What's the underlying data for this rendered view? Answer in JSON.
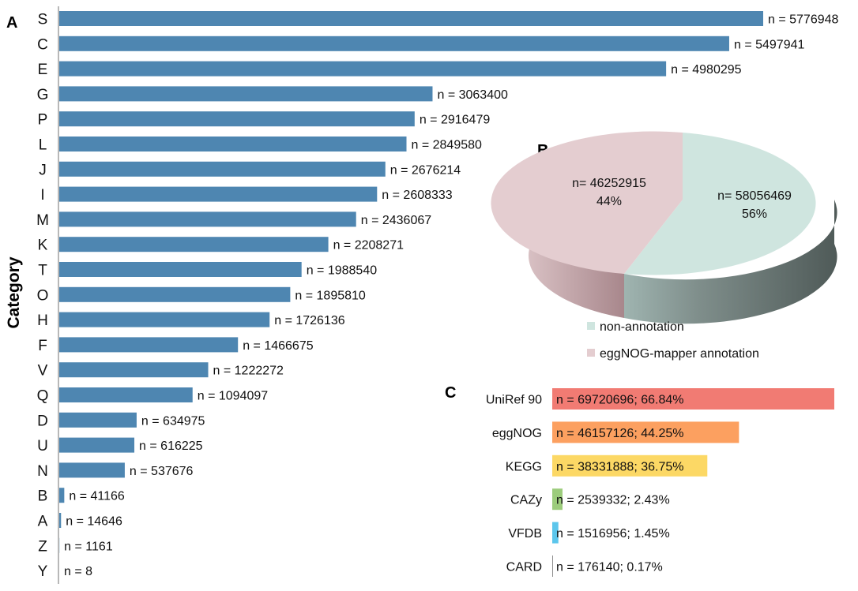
{
  "panel_a": {
    "letter": "A"
  },
  "panel_b": {
    "letter": "B"
  },
  "panel_c": {
    "letter": "C"
  },
  "chart_data": [
    {
      "type": "bar",
      "orientation": "horizontal",
      "ylabel": "Category",
      "categories": [
        "S",
        "C",
        "E",
        "G",
        "P",
        "L",
        "J",
        "I",
        "M",
        "K",
        "T",
        "O",
        "H",
        "F",
        "V",
        "Q",
        "D",
        "U",
        "N",
        "B",
        "A",
        "Z",
        "Y"
      ],
      "values": [
        5776948,
        5497941,
        4980295,
        3063400,
        2916479,
        2849580,
        2676214,
        2608333,
        2436067,
        2208271,
        1988540,
        1895810,
        1726136,
        1466675,
        1222272,
        1094097,
        634975,
        616225,
        537676,
        41166,
        14646,
        1161,
        8
      ],
      "data_labels": [
        "n = 5776948",
        "n = 5497941",
        "n = 4980295",
        "n = 3063400",
        "n = 2916479",
        "n = 2849580",
        "n = 2676214",
        "n = 2608333",
        "n = 2436067",
        "n = 2208271",
        "n = 1988540",
        "n = 1895810",
        "n = 1726136",
        "n = 1466675",
        "n = 1222272",
        "n = 1094097",
        "n = 634975",
        "n = 616225",
        "n = 537676",
        "n = 41166",
        "n = 14646",
        "n = 1161",
        "n = 8"
      ],
      "xlim": [
        0,
        5776948
      ],
      "bar_color": "#4e86b1"
    },
    {
      "type": "pie",
      "style": "3d",
      "slices": [
        {
          "name": "non-annotation",
          "value": 58056469,
          "percent": 56,
          "label_line1": "n= 58056469",
          "label_line2": "56%",
          "color": "#cfe5df"
        },
        {
          "name": "eggNOG-mapper annotation",
          "value": 46252915,
          "percent": 44,
          "label_line1": "n= 46252915",
          "label_line2": "44%",
          "color": "#e4cdd0"
        }
      ],
      "legend": [
        "non-annotation",
        "eggNOG-mapper annotation"
      ],
      "legend_position": "bottom"
    },
    {
      "type": "bar",
      "orientation": "horizontal",
      "categories": [
        "UniRef 90",
        "eggNOG",
        "KEGG",
        "CAZy",
        "VFDB",
        "CARD"
      ],
      "values": [
        69720696,
        46157126,
        38331888,
        2539332,
        1516956,
        176140
      ],
      "percents": [
        66.84,
        44.25,
        36.75,
        2.43,
        1.45,
        0.17
      ],
      "data_labels": [
        "n = 69720696; 66.84%",
        "n = 46157126; 44.25%",
        "n = 38331888; 36.75%",
        "n = 2539332; 2.43%",
        "n = 1516956; 1.45%",
        "n = 176140; 0.17%"
      ],
      "colors": [
        "#f17b73",
        "#fca060",
        "#fcd865",
        "#9ccc7c",
        "#5cc6ec",
        "#8c8c8c"
      ],
      "xlim": [
        0,
        66.84
      ]
    }
  ]
}
